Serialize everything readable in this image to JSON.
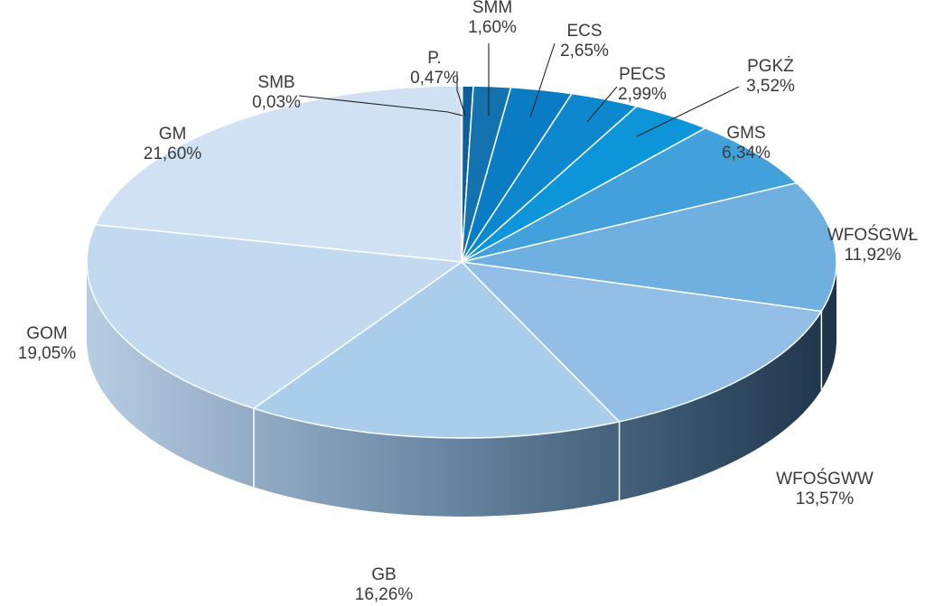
{
  "chart_data": {
    "type": "pie",
    "style": "3d",
    "slices": [
      {
        "label": "SMB",
        "value": 0.03,
        "display": "0,03%",
        "color": "#1f5a8a"
      },
      {
        "label": "P.",
        "value": 0.47,
        "display": "0,47%",
        "color": "#0c5f9c"
      },
      {
        "label": "SMM",
        "value": 1.6,
        "display": "1,60%",
        "color": "#1473ae"
      },
      {
        "label": "ECS",
        "value": 2.65,
        "display": "2,65%",
        "color": "#0a7cc4"
      },
      {
        "label": "PECS",
        "value": 2.99,
        "display": "2,99%",
        "color": "#0d88cf"
      },
      {
        "label": "PGKŻ",
        "value": 3.52,
        "display": "3,52%",
        "color": "#0c96d9"
      },
      {
        "label": "GMS",
        "value": 6.34,
        "display": "6,34%",
        "color": "#42a1da"
      },
      {
        "label": "WFOŚGWŁ",
        "value": 11.92,
        "display": "11,92%",
        "color": "#6fb0e0"
      },
      {
        "label": "WFOŚGWW",
        "value": 13.57,
        "display": "13,57%",
        "color": "#93bfe6"
      },
      {
        "label": "GB",
        "value": 16.26,
        "display": "16,26%",
        "color": "#abcdec"
      },
      {
        "label": "GOM",
        "value": 19.05,
        "display": "19,05%",
        "color": "#c2daf0"
      },
      {
        "label": "GM",
        "value": 21.6,
        "display": "21,60%",
        "color": "#cfe1f3"
      }
    ]
  }
}
